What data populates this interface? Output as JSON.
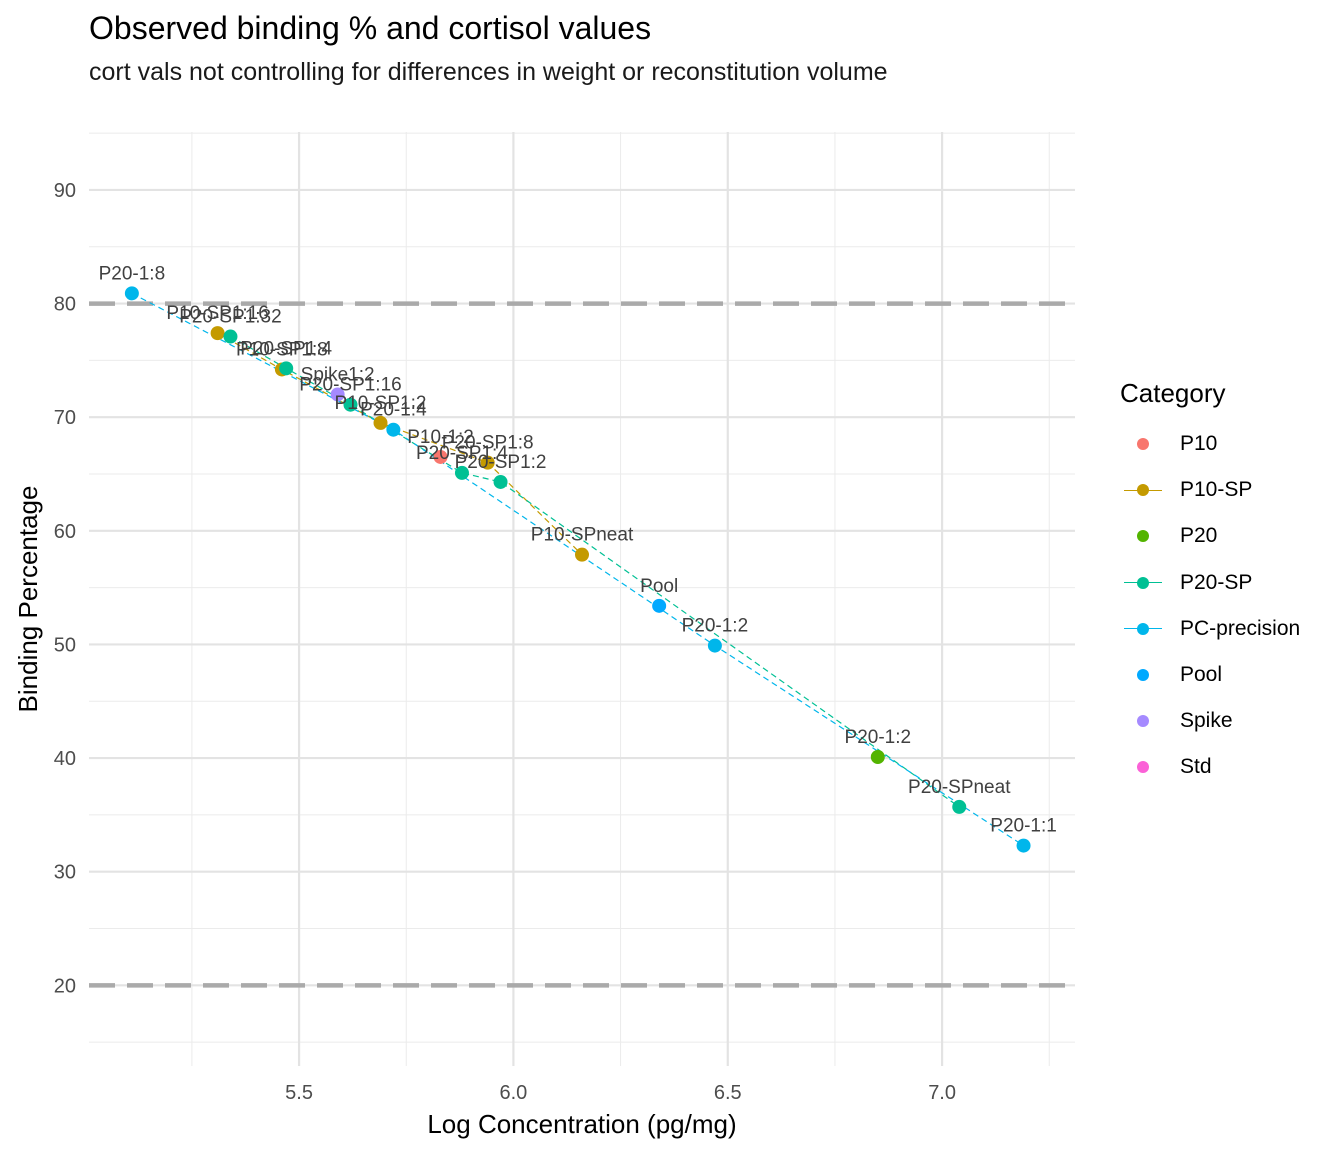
{
  "chart_data": {
    "type": "scatter",
    "title": "Observed binding % and cortisol values",
    "subtitle": "cort vals not controlling for differences in weight or reconstitution volume",
    "xlabel": "Log Concentration (pg/mg)",
    "ylabel": "Binding Percentage",
    "xlim": [
      5.01,
      7.31
    ],
    "ylim": [
      12.9,
      95.1
    ],
    "xticks": [
      5.5,
      6.0,
      6.5,
      7.0
    ],
    "yticks": [
      20,
      30,
      40,
      50,
      60,
      70,
      80,
      90
    ],
    "grid": true,
    "reference_lines": [
      80,
      20
    ],
    "legend_title": "Category",
    "legend_position": "right",
    "series": [
      {
        "name": "P10",
        "color": "#F8766D",
        "line": false,
        "points": [
          {
            "x": 5.83,
            "y": 66.5,
            "label": "P10-1:2"
          }
        ]
      },
      {
        "name": "P10-SP",
        "color": "#C49A00",
        "line": true,
        "points": [
          {
            "x": 5.31,
            "y": 77.4,
            "label": "P10-SP1:16"
          },
          {
            "x": 5.46,
            "y": 74.2,
            "label": "P10-SP1:8"
          },
          {
            "x": 5.69,
            "y": 69.5,
            "label": "P10-SP1:2"
          },
          {
            "x": 5.94,
            "y": 66.0,
            "label": "P20-SP1:8"
          },
          {
            "x": 6.16,
            "y": 57.9,
            "label": "P10-SPneat"
          }
        ]
      },
      {
        "name": "P20",
        "color": "#53B400",
        "line": false,
        "points": [
          {
            "x": 6.85,
            "y": 40.1,
            "label": "P20-1:2"
          }
        ]
      },
      {
        "name": "P20-SP",
        "color": "#00C094",
        "line": true,
        "points": [
          {
            "x": 5.34,
            "y": 77.1,
            "label": "P20-SP1:32"
          },
          {
            "x": 5.47,
            "y": 74.3,
            "label": "P20-SP1:4"
          },
          {
            "x": 5.62,
            "y": 71.1,
            "label": "P20-SP1:16"
          },
          {
            "x": 5.88,
            "y": 65.1,
            "label": "P20-SP1:4"
          },
          {
            "x": 5.97,
            "y": 64.3,
            "label": "P20-SP1:2"
          },
          {
            "x": 7.04,
            "y": 35.7,
            "label": "P20-SPneat"
          }
        ]
      },
      {
        "name": "PC-precision",
        "color": "#00B6EB",
        "line": true,
        "points": [
          {
            "x": 5.11,
            "y": 80.9,
            "label": "P20-1:8"
          },
          {
            "x": 5.72,
            "y": 68.9,
            "label": "P20-1:4"
          },
          {
            "x": 6.47,
            "y": 49.9,
            "label": "P20-1:2"
          },
          {
            "x": 7.19,
            "y": 32.3,
            "label": "P20-1:1"
          }
        ]
      },
      {
        "name": "Pool",
        "color": "#00A9FF",
        "line": false,
        "points": [
          {
            "x": 6.34,
            "y": 53.4,
            "label": "Pool"
          }
        ]
      },
      {
        "name": "Spike",
        "color": "#A58AFF",
        "line": false,
        "points": [
          {
            "x": 5.59,
            "y": 72.0,
            "label": "Spike1:2"
          }
        ]
      },
      {
        "name": "Std",
        "color": "#FB61D7",
        "line": false,
        "points": []
      }
    ]
  }
}
